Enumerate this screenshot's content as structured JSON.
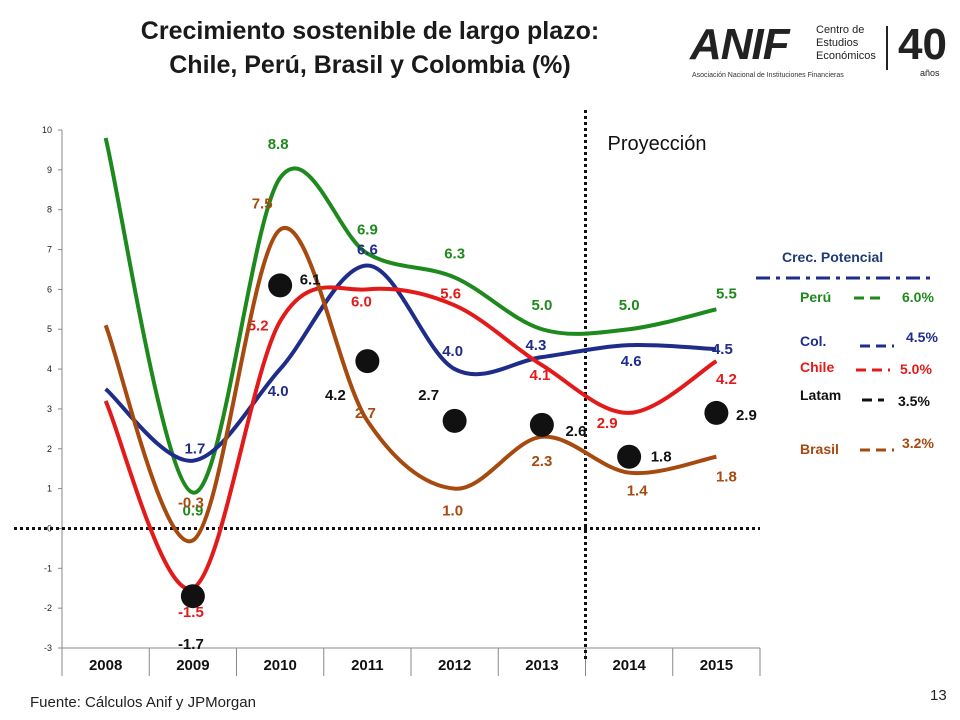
{
  "title_line1": "Crecimiento sostenible de largo plazo:",
  "title_line2": "Chile, Perú, Brasil y Colombia (%)",
  "logo": {
    "brand": "ANIF",
    "subtitle": "Asociación Nacional de Instituciones Financieras",
    "center_line1": "Centro de",
    "center_line2": "Estudios",
    "center_line3": "Económicos",
    "anniversary": "40",
    "anniversary_sub": "años"
  },
  "footer": "Fuente: Cálculos Anif y  JPMorgan",
  "page_number": "13",
  "chart_data": {
    "type": "line",
    "categories": [
      "2008",
      "2009",
      "2010",
      "2011",
      "2012",
      "2013",
      "2014",
      "2015"
    ],
    "ylim": [
      -3,
      10
    ],
    "yticks": [
      "-3",
      "-2",
      "-1",
      "0",
      "1",
      "2",
      "3",
      "4",
      "5",
      "6",
      "7",
      "8",
      "9",
      "10"
    ],
    "projection_label": "Proyección",
    "projection_start_after": "2013",
    "series": [
      {
        "name": "Perú",
        "color": "#1e8a1e",
        "values": [
          9.8,
          0.9,
          8.8,
          6.9,
          6.3,
          5.0,
          5.0,
          5.5
        ],
        "labels": [
          "",
          "0.9",
          "8.8",
          "6.9",
          "6.3",
          "5.0",
          "5.0",
          "5.5"
        ]
      },
      {
        "name": "Col.",
        "color": "#1f2d8a",
        "values": [
          3.5,
          1.7,
          4.0,
          6.6,
          4.0,
          4.3,
          4.6,
          4.5
        ],
        "labels": [
          "",
          "1.7",
          "4.0",
          "6.6",
          "4.0",
          "4.3",
          "4.6",
          "4.5"
        ]
      },
      {
        "name": "Chile",
        "color": "#e31a1a",
        "values": [
          3.2,
          -1.5,
          5.2,
          6.0,
          5.6,
          4.1,
          2.9,
          4.2
        ],
        "labels": [
          "",
          "-1.5",
          "5.2",
          "6.0",
          "5.6",
          "4.1",
          "2.9",
          "4.2"
        ]
      },
      {
        "name": "Brasil",
        "color": "#a64a10",
        "values": [
          5.1,
          -0.3,
          7.5,
          2.7,
          1.0,
          2.3,
          1.4,
          1.8
        ],
        "labels": [
          "",
          "-0.3",
          "7.5",
          "2.7",
          "1.0",
          "2.3",
          "1.4",
          "1.8"
        ]
      },
      {
        "name": "Latam",
        "color": "#111111",
        "marker": "dot",
        "values": [
          null,
          -1.7,
          6.1,
          4.2,
          2.7,
          2.6,
          1.8,
          2.9
        ],
        "labels": [
          "",
          "-1.7",
          "6.1",
          "4.2",
          "2.7",
          "2.6",
          "1.8",
          "2.9"
        ]
      }
    ],
    "legend": {
      "title": "Crec. Potencial",
      "items": [
        {
          "name": "Perú",
          "value": "6.0%",
          "color": "#1e8a1e"
        },
        {
          "name": "Col.",
          "value": "4.5%",
          "color": "#1f2d8a"
        },
        {
          "name": "Chile",
          "value": "5.0%",
          "color": "#e31a1a"
        },
        {
          "name": "Latam",
          "value": "3.5%",
          "color": "#111111"
        },
        {
          "name": "Brasil",
          "value": "3.2%",
          "color": "#a64a10"
        }
      ]
    }
  }
}
